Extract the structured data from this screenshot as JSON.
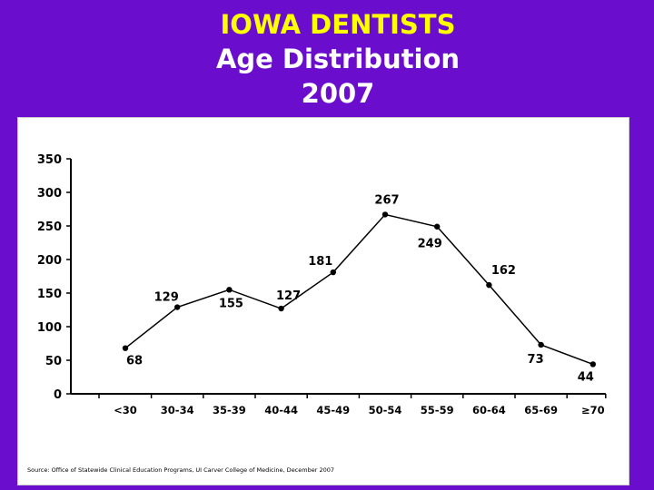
{
  "title": {
    "line1": "IOWA DENTISTS",
    "line2": "Age Distribution",
    "line3": "2007"
  },
  "source": "Source: Office of Statewide Clinical Education Programs, UI Carver College of Medicine, December 2007",
  "colors": {
    "background": "#6a0dcc",
    "title_accent": "#ffff00",
    "title_text": "#ffffff",
    "line": "#000000"
  },
  "chart_data": {
    "type": "line",
    "categories": [
      "<30",
      "30-34",
      "35-39",
      "40-44",
      "45-49",
      "50-54",
      "55-59",
      "60-64",
      "65-69",
      "≥70"
    ],
    "values": [
      68,
      129,
      155,
      127,
      181,
      267,
      249,
      162,
      73,
      44
    ],
    "yticks": [
      0,
      50,
      100,
      150,
      200,
      250,
      300,
      350
    ],
    "ylim": [
      0,
      350
    ],
    "grid": false,
    "legend": "none"
  }
}
